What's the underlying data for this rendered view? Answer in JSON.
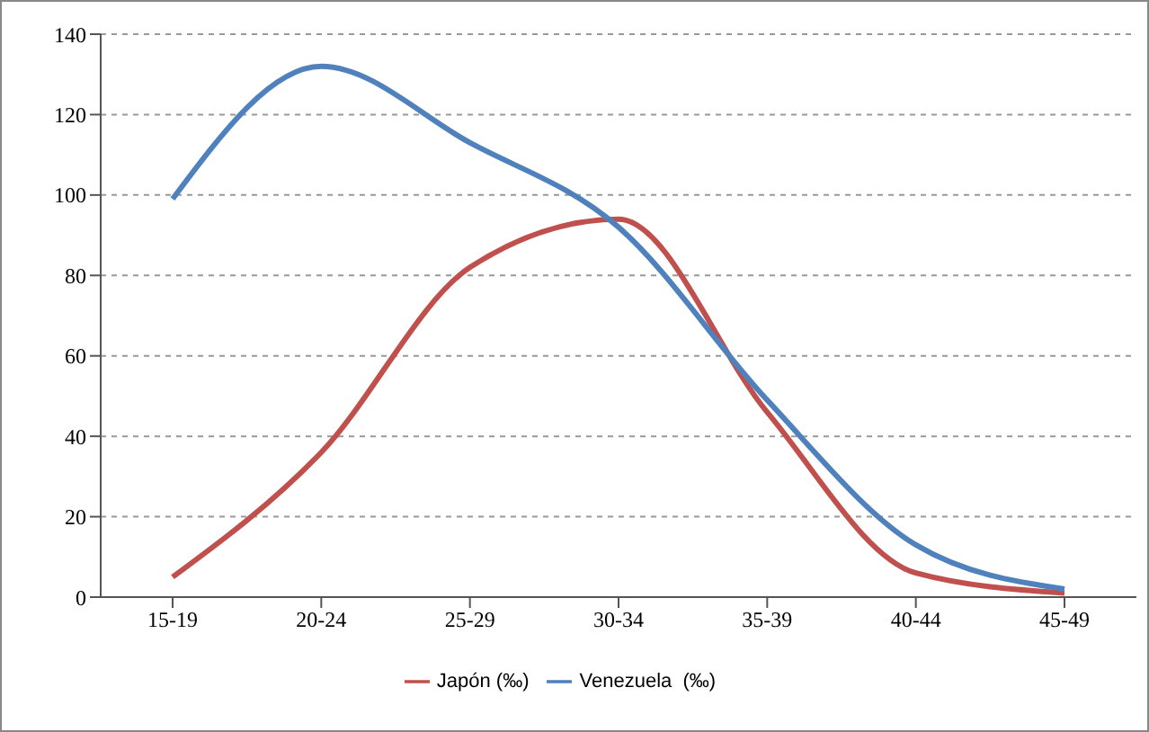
{
  "chart_data": {
    "type": "line",
    "categories": [
      "15-19",
      "20-24",
      "25-29",
      "30-34",
      "35-39",
      "40-44",
      "45-49"
    ],
    "series": [
      {
        "name": "Japón (‰)",
        "color": "#c0504d",
        "values": [
          5,
          36,
          82,
          94,
          46,
          6,
          1
        ]
      },
      {
        "name": "Venezuela  (‰)",
        "color": "#4f81bd",
        "values": [
          99,
          132,
          113,
          92,
          49,
          13,
          2
        ]
      }
    ],
    "ylim": [
      0,
      140
    ],
    "yticks": [
      0,
      20,
      40,
      60,
      80,
      100,
      120,
      140
    ],
    "grid": "y",
    "legend": "bottom",
    "marker": "none",
    "line_style": "solid"
  }
}
